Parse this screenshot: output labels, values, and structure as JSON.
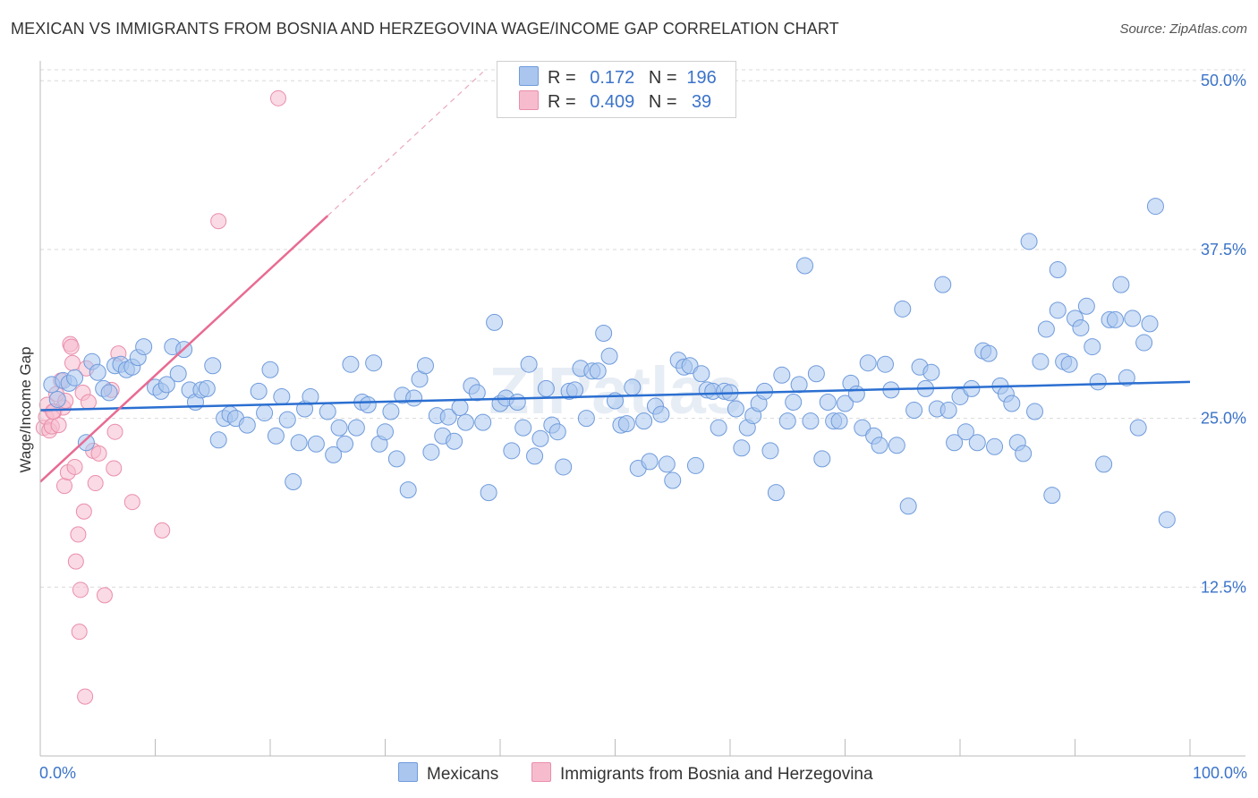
{
  "title": "MEXICAN VS IMMIGRANTS FROM BOSNIA AND HERZEGOVINA WAGE/INCOME GAP CORRELATION CHART",
  "source": "Source: ZipAtlas.com",
  "watermark": "ZIPatlas",
  "legend": {
    "r_label": "R =",
    "n_label": "N =",
    "mexicans": {
      "r": "0.172",
      "n": "196"
    },
    "bosnia": {
      "r": "0.409",
      "n": "39"
    }
  },
  "colors": {
    "blue_fill": "#aac6ee",
    "blue_stroke": "#6f9bdc",
    "blue_line": "#2b6fd1",
    "pink_fill": "#f6bccd",
    "pink_stroke": "#ea8eab",
    "pink_line": "#e86b92",
    "value_text": "#3b73c9"
  },
  "chart_data": {
    "type": "scatter",
    "title": "MEXICAN VS IMMIGRANTS FROM BOSNIA AND HERZEGOVINA WAGE/INCOME GAP CORRELATION CHART",
    "xlabel": "",
    "ylabel": "Wage/Income Gap",
    "xlim": [
      0,
      100
    ],
    "ylim": [
      0,
      52
    ],
    "x_tick_labels": [
      "0.0%",
      "100.0%"
    ],
    "y_ticks": [
      12.5,
      25.0,
      37.5,
      50.0
    ],
    "y_tick_labels": [
      "12.5%",
      "25.0%",
      "37.5%",
      "50.0%"
    ],
    "grid": true,
    "legend_position": "bottom",
    "series": [
      {
        "name": "Mexicans",
        "color": "#6f9bdc",
        "r": 0.172,
        "n": 196,
        "trend": {
          "x": [
            0,
            100
          ],
          "y": [
            25.6,
            27.7
          ]
        },
        "points": [
          [
            1,
            27.5
          ],
          [
            1.5,
            26.4
          ],
          [
            2,
            27.8
          ],
          [
            2.5,
            27.6
          ],
          [
            3,
            28.0
          ],
          [
            4,
            23.2
          ],
          [
            4.5,
            29.2
          ],
          [
            5,
            28.4
          ],
          [
            5.5,
            27.2
          ],
          [
            6,
            26.9
          ],
          [
            6.5,
            28.9
          ],
          [
            7,
            29.0
          ],
          [
            7.5,
            28.6
          ],
          [
            8,
            28.8
          ],
          [
            8.5,
            29.5
          ],
          [
            9,
            30.3
          ],
          [
            10,
            27.3
          ],
          [
            10.5,
            27.0
          ],
          [
            11,
            27.5
          ],
          [
            11.5,
            30.3
          ],
          [
            12,
            28.3
          ],
          [
            12.5,
            30.1
          ],
          [
            13,
            27.1
          ],
          [
            13.5,
            26.2
          ],
          [
            14,
            27.1
          ],
          [
            14.5,
            27.2
          ],
          [
            15,
            28.9
          ],
          [
            15.5,
            23.4
          ],
          [
            16,
            25.0
          ],
          [
            16.5,
            25.3
          ],
          [
            17,
            25.0
          ],
          [
            18,
            24.5
          ],
          [
            19,
            27.0
          ],
          [
            19.5,
            25.4
          ],
          [
            20,
            28.6
          ],
          [
            20.5,
            23.7
          ],
          [
            21,
            26.6
          ],
          [
            21.5,
            24.9
          ],
          [
            22,
            20.3
          ],
          [
            22.5,
            23.2
          ],
          [
            23,
            25.7
          ],
          [
            23.5,
            26.6
          ],
          [
            24,
            23.1
          ],
          [
            25,
            25.5
          ],
          [
            25.5,
            22.3
          ],
          [
            26,
            24.3
          ],
          [
            26.5,
            23.1
          ],
          [
            27,
            29.0
          ],
          [
            27.5,
            24.3
          ],
          [
            28,
            26.2
          ],
          [
            28.5,
            26.0
          ],
          [
            29,
            29.1
          ],
          [
            29.5,
            23.1
          ],
          [
            30,
            24.0
          ],
          [
            30.5,
            25.5
          ],
          [
            31,
            22.0
          ],
          [
            31.5,
            26.7
          ],
          [
            32,
            19.7
          ],
          [
            32.5,
            26.5
          ],
          [
            33,
            27.9
          ],
          [
            33.5,
            28.9
          ],
          [
            34,
            22.5
          ],
          [
            34.5,
            25.2
          ],
          [
            35,
            23.7
          ],
          [
            35.5,
            25.1
          ],
          [
            36,
            23.3
          ],
          [
            36.5,
            25.8
          ],
          [
            37,
            24.7
          ],
          [
            37.5,
            27.4
          ],
          [
            38,
            26.9
          ],
          [
            38.5,
            24.7
          ],
          [
            39,
            19.5
          ],
          [
            39.5,
            32.1
          ],
          [
            40,
            26.1
          ],
          [
            40.5,
            26.5
          ],
          [
            41,
            22.6
          ],
          [
            41.5,
            26.2
          ],
          [
            42,
            24.3
          ],
          [
            42.5,
            29.0
          ],
          [
            43,
            22.2
          ],
          [
            43.5,
            23.5
          ],
          [
            44,
            27.2
          ],
          [
            44.5,
            24.5
          ],
          [
            45,
            24.0
          ],
          [
            45.5,
            21.4
          ],
          [
            46,
            27.0
          ],
          [
            46.5,
            27.1
          ],
          [
            47,
            28.7
          ],
          [
            47.5,
            25.0
          ],
          [
            48,
            28.5
          ],
          [
            48.5,
            28.5
          ],
          [
            49,
            31.3
          ],
          [
            49.5,
            29.6
          ],
          [
            50,
            26.3
          ],
          [
            50.5,
            24.5
          ],
          [
            51,
            24.6
          ],
          [
            51.5,
            27.3
          ],
          [
            52,
            21.3
          ],
          [
            52.5,
            24.8
          ],
          [
            53,
            21.8
          ],
          [
            53.5,
            25.9
          ],
          [
            54,
            25.3
          ],
          [
            54.5,
            21.6
          ],
          [
            55,
            20.4
          ],
          [
            55.5,
            29.3
          ],
          [
            56,
            28.8
          ],
          [
            56.5,
            28.9
          ],
          [
            57,
            21.5
          ],
          [
            57.5,
            28.3
          ],
          [
            58,
            27.1
          ],
          [
            58.5,
            27.0
          ],
          [
            59,
            24.3
          ],
          [
            59.5,
            27.0
          ],
          [
            60,
            26.9
          ],
          [
            60.5,
            25.7
          ],
          [
            61,
            22.8
          ],
          [
            61.5,
            24.3
          ],
          [
            62,
            25.2
          ],
          [
            62.5,
            26.1
          ],
          [
            63,
            27.0
          ],
          [
            63.5,
            22.6
          ],
          [
            64,
            19.5
          ],
          [
            64.5,
            28.2
          ],
          [
            65,
            24.8
          ],
          [
            65.5,
            26.2
          ],
          [
            66,
            27.5
          ],
          [
            66.5,
            36.3
          ],
          [
            67,
            24.8
          ],
          [
            67.5,
            28.3
          ],
          [
            68,
            22.0
          ],
          [
            68.5,
            26.2
          ],
          [
            69,
            24.8
          ],
          [
            69.5,
            24.8
          ],
          [
            70,
            26.1
          ],
          [
            70.5,
            27.6
          ],
          [
            71,
            26.8
          ],
          [
            71.5,
            24.3
          ],
          [
            72,
            29.1
          ],
          [
            72.5,
            23.7
          ],
          [
            73,
            23.0
          ],
          [
            73.5,
            29.0
          ],
          [
            74,
            27.1
          ],
          [
            74.5,
            23.0
          ],
          [
            75,
            33.1
          ],
          [
            75.5,
            18.5
          ],
          [
            76,
            25.6
          ],
          [
            76.5,
            28.8
          ],
          [
            77,
            27.2
          ],
          [
            77.5,
            28.4
          ],
          [
            78,
            25.7
          ],
          [
            78.5,
            34.9
          ],
          [
            79,
            25.6
          ],
          [
            79.5,
            23.2
          ],
          [
            80,
            26.6
          ],
          [
            80.5,
            24.0
          ],
          [
            81,
            27.2
          ],
          [
            81.5,
            23.2
          ],
          [
            82,
            30.0
          ],
          [
            82.5,
            29.8
          ],
          [
            83,
            22.9
          ],
          [
            83.5,
            27.4
          ],
          [
            84,
            26.8
          ],
          [
            84.5,
            26.1
          ],
          [
            85,
            23.2
          ],
          [
            85.5,
            22.4
          ],
          [
            86,
            38.1
          ],
          [
            86.5,
            25.5
          ],
          [
            87,
            29.2
          ],
          [
            87.5,
            31.6
          ],
          [
            88,
            19.3
          ],
          [
            88.5,
            33.0
          ],
          [
            89,
            29.2
          ],
          [
            89.5,
            29.0
          ],
          [
            90,
            32.4
          ],
          [
            90.5,
            31.7
          ],
          [
            91,
            33.3
          ],
          [
            91.5,
            30.3
          ],
          [
            92,
            27.7
          ],
          [
            92.5,
            21.6
          ],
          [
            93,
            32.3
          ],
          [
            93.5,
            32.3
          ],
          [
            94,
            34.9
          ],
          [
            94.5,
            28.0
          ],
          [
            95,
            32.4
          ],
          [
            95.5,
            24.3
          ],
          [
            96,
            30.6
          ],
          [
            96.5,
            32.0
          ],
          [
            97,
            40.7
          ],
          [
            98,
            17.5
          ],
          [
            88.5,
            36.0
          ]
        ]
      },
      {
        "name": "Immigrants from Bosnia and Herzegovina",
        "color": "#ea8eab",
        "r": 0.409,
        "n": 39,
        "trend": {
          "x": [
            0,
            25
          ],
          "y": [
            20.3,
            40.0
          ]
        },
        "points": [
          [
            0.3,
            24.3
          ],
          [
            0.5,
            25.1
          ],
          [
            0.6,
            26.0
          ],
          [
            0.8,
            24.1
          ],
          [
            1.0,
            24.4
          ],
          [
            1.2,
            25.5
          ],
          [
            1.4,
            26.8
          ],
          [
            1.6,
            24.5
          ],
          [
            1.8,
            27.8
          ],
          [
            2.0,
            25.8
          ],
          [
            2.1,
            20.0
          ],
          [
            2.2,
            26.3
          ],
          [
            2.4,
            21.0
          ],
          [
            2.6,
            30.5
          ],
          [
            2.7,
            30.3
          ],
          [
            2.8,
            29.1
          ],
          [
            3.0,
            21.4
          ],
          [
            3.1,
            14.4
          ],
          [
            3.3,
            16.4
          ],
          [
            3.4,
            9.2
          ],
          [
            3.5,
            12.3
          ],
          [
            3.7,
            26.9
          ],
          [
            3.8,
            18.1
          ],
          [
            3.9,
            4.4
          ],
          [
            4.0,
            28.7
          ],
          [
            4.2,
            26.2
          ],
          [
            4.6,
            22.6
          ],
          [
            4.8,
            20.2
          ],
          [
            5.1,
            22.4
          ],
          [
            5.6,
            11.9
          ],
          [
            6.4,
            21.3
          ],
          [
            6.5,
            24.0
          ],
          [
            6.8,
            29.8
          ],
          [
            8.0,
            18.8
          ],
          [
            10.6,
            16.7
          ],
          [
            15.5,
            39.6
          ],
          [
            20.7,
            48.7
          ],
          [
            6.2,
            27.1
          ],
          [
            1.1,
            25.5
          ]
        ]
      }
    ]
  }
}
